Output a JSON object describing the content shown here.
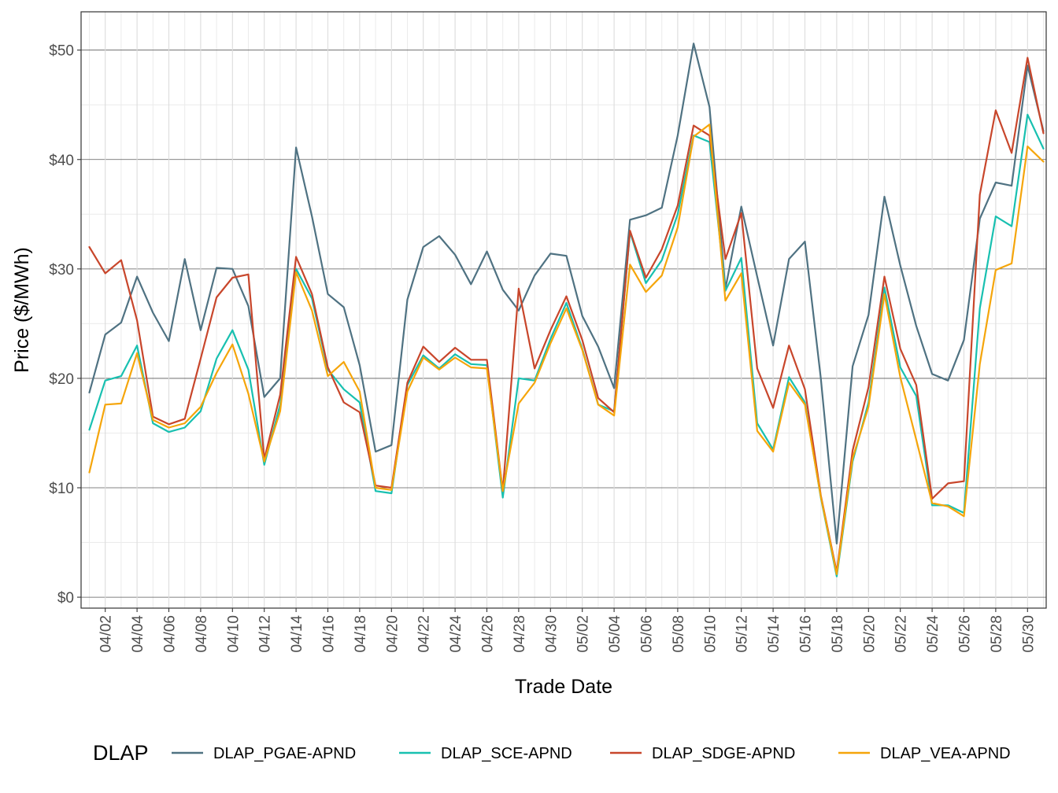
{
  "chart_data": {
    "type": "line",
    "xlabel": "Trade Date",
    "ylabel": "Price ($/MWh)",
    "legend_title": "DLAP",
    "legend_position": "bottom",
    "grid": true,
    "ylim": [
      -1,
      53.5
    ],
    "y_ticks": [
      0,
      10,
      20,
      30,
      40,
      50
    ],
    "y_tick_labels": [
      "$0",
      "$10",
      "$20",
      "$30",
      "$40",
      "$50"
    ],
    "x_tick_labels": [
      "04/02",
      "04/04",
      "04/06",
      "04/08",
      "04/10",
      "04/12",
      "04/14",
      "04/16",
      "04/18",
      "04/20",
      "04/22",
      "04/24",
      "04/26",
      "04/28",
      "04/30",
      "05/02",
      "05/04",
      "05/06",
      "05/08",
      "05/10",
      "05/12",
      "05/14",
      "05/16",
      "05/18",
      "05/20",
      "05/22",
      "05/24",
      "05/26",
      "05/28",
      "05/30"
    ],
    "x": [
      "04/01",
      "04/02",
      "04/03",
      "04/04",
      "04/05",
      "04/06",
      "04/07",
      "04/08",
      "04/09",
      "04/10",
      "04/11",
      "04/12",
      "04/13",
      "04/14",
      "04/15",
      "04/16",
      "04/17",
      "04/18",
      "04/19",
      "04/20",
      "04/21",
      "04/22",
      "04/23",
      "04/24",
      "04/25",
      "04/26",
      "04/27",
      "04/28",
      "04/29",
      "04/30",
      "05/01",
      "05/02",
      "05/03",
      "05/04",
      "05/05",
      "05/06",
      "05/07",
      "05/08",
      "05/09",
      "05/10",
      "05/11",
      "05/12",
      "05/13",
      "05/14",
      "05/15",
      "05/16",
      "05/17",
      "05/18",
      "05/19",
      "05/20",
      "05/21",
      "05/22",
      "05/23",
      "05/24",
      "05/25",
      "05/26",
      "05/27",
      "05/28",
      "05/29",
      "05/30",
      "05/31"
    ],
    "series": [
      {
        "name": "DLAP_PGAE-APND",
        "color": "#4f7282",
        "values": [
          18.7,
          24.0,
          25.1,
          29.3,
          26.0,
          23.4,
          30.9,
          24.4,
          30.1,
          30.0,
          26.6,
          18.3,
          20.0,
          41.1,
          34.8,
          27.7,
          26.5,
          21.2,
          13.3,
          13.9,
          27.2,
          32.0,
          33.0,
          31.3,
          28.6,
          31.6,
          28.1,
          26.2,
          29.4,
          31.4,
          31.2,
          25.7,
          22.9,
          19.1,
          34.5,
          34.9,
          35.6,
          42.2,
          50.6,
          44.8,
          28.2,
          35.7,
          29.3,
          23.0,
          30.9,
          32.5,
          20.0,
          4.9,
          21.1,
          25.8,
          36.6,
          30.3,
          24.8,
          20.4,
          19.8,
          23.5,
          34.6,
          37.9,
          37.6,
          48.6,
          42.6
        ]
      },
      {
        "name": "DLAP_SCE-APND",
        "color": "#18c0b0",
        "values": [
          15.3,
          19.8,
          20.2,
          23.0,
          15.9,
          15.1,
          15.5,
          17.0,
          21.8,
          24.4,
          20.8,
          12.1,
          17.6,
          30.0,
          27.3,
          20.8,
          19.0,
          17.8,
          9.7,
          9.5,
          19.4,
          22.1,
          20.9,
          22.2,
          21.3,
          21.2,
          9.1,
          20.0,
          19.8,
          23.6,
          26.9,
          22.7,
          17.6,
          17.0,
          33.4,
          28.7,
          30.8,
          35.0,
          42.2,
          41.6,
          28.0,
          31.0,
          15.9,
          13.5,
          20.1,
          17.8,
          9.1,
          1.9,
          12.4,
          17.8,
          28.3,
          21.0,
          18.4,
          8.4,
          8.4,
          7.7,
          26.4,
          34.8,
          33.9,
          44.1,
          41.0
        ]
      },
      {
        "name": "DLAP_SDGE-APND",
        "color": "#c8462b",
        "values": [
          32.0,
          29.6,
          30.8,
          25.3,
          16.5,
          15.8,
          16.3,
          21.8,
          27.4,
          29.2,
          29.5,
          12.6,
          18.5,
          31.1,
          27.7,
          21.0,
          17.8,
          16.9,
          10.2,
          10.0,
          19.6,
          22.9,
          21.5,
          22.8,
          21.7,
          21.7,
          9.7,
          28.2,
          20.9,
          24.4,
          27.5,
          23.5,
          18.2,
          16.9,
          33.5,
          29.2,
          31.8,
          35.8,
          43.1,
          42.2,
          30.9,
          35.1,
          20.9,
          17.3,
          23.0,
          19.0,
          9.3,
          2.3,
          13.4,
          19.2,
          29.3,
          22.7,
          19.4,
          9.0,
          10.4,
          10.6,
          36.8,
          44.5,
          40.6,
          49.3,
          42.4
        ]
      },
      {
        "name": "DLAP_VEA-APND",
        "color": "#f5a50a",
        "values": [
          11.4,
          17.6,
          17.7,
          22.3,
          16.2,
          15.5,
          15.9,
          17.4,
          20.5,
          23.1,
          18.6,
          12.4,
          17.0,
          29.7,
          26.2,
          20.2,
          21.5,
          18.8,
          10.0,
          9.8,
          18.8,
          21.9,
          20.8,
          21.9,
          21.0,
          20.9,
          9.7,
          17.7,
          19.6,
          23.2,
          26.4,
          22.6,
          17.6,
          16.6,
          30.4,
          27.9,
          29.4,
          33.8,
          42.1,
          43.2,
          27.1,
          29.6,
          15.2,
          13.3,
          19.6,
          17.6,
          9.2,
          2.1,
          12.7,
          17.4,
          27.7,
          20.1,
          14.4,
          8.6,
          8.3,
          7.4,
          21.3,
          29.9,
          30.5,
          41.2,
          39.8
        ]
      }
    ]
  }
}
